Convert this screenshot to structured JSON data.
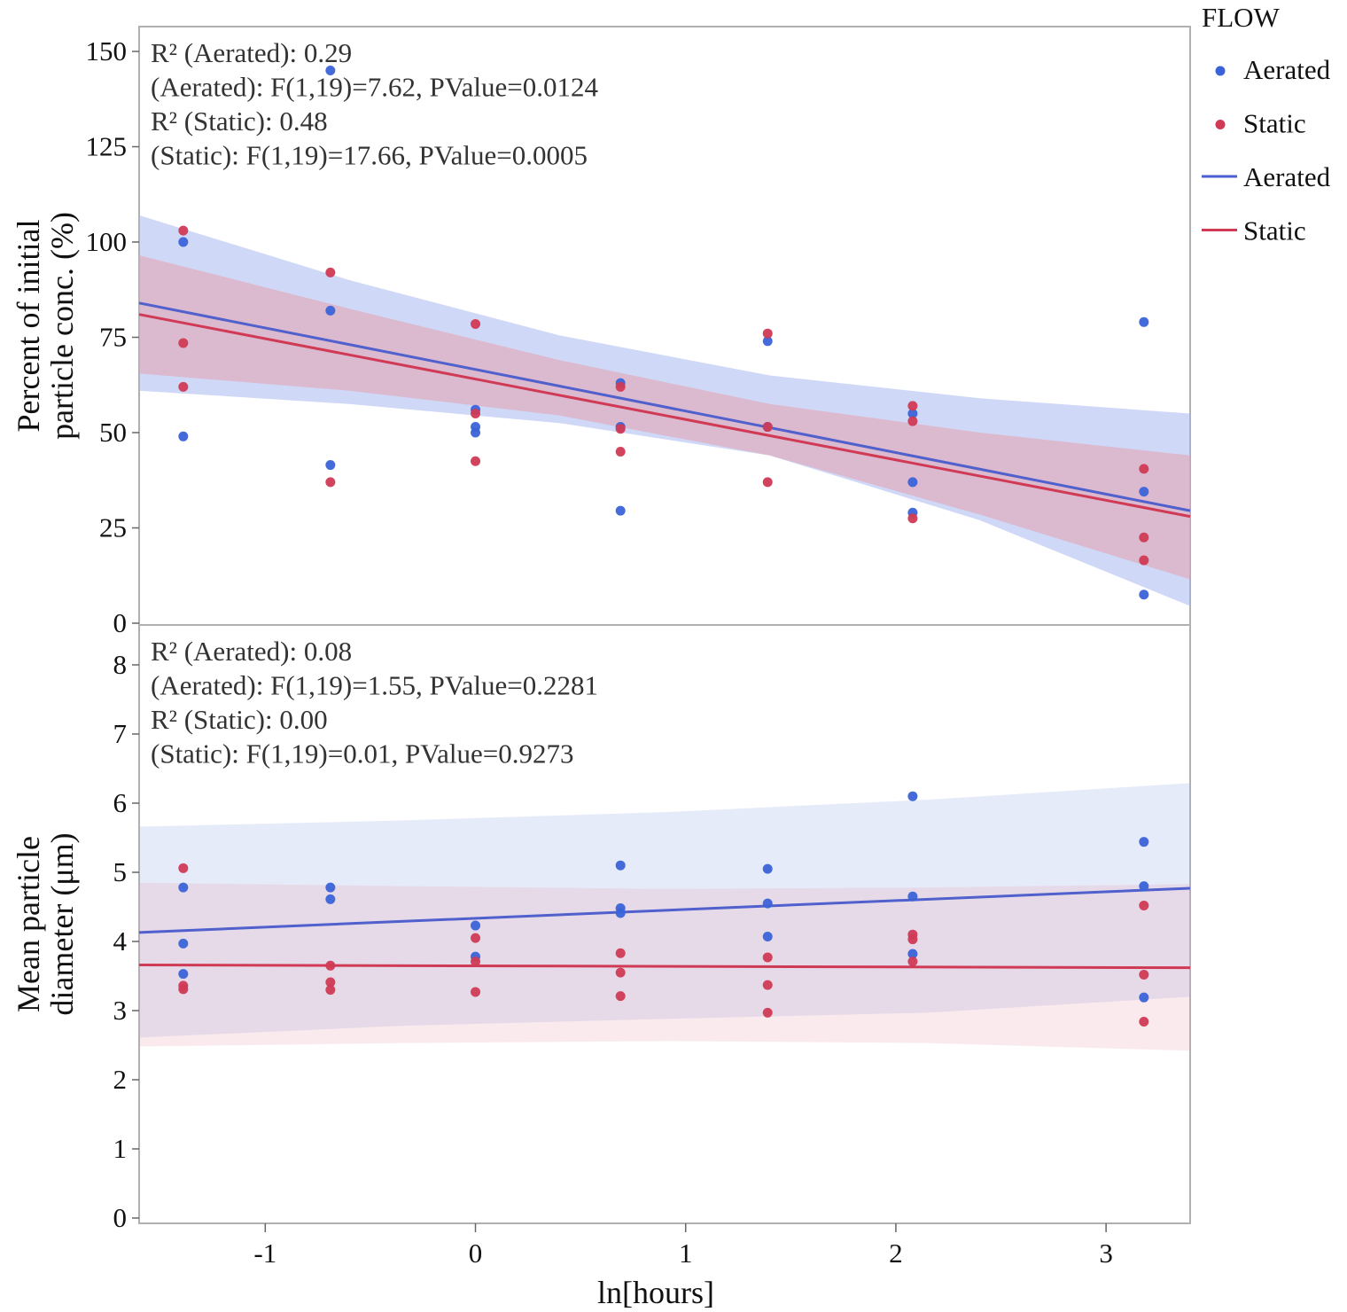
{
  "chart_data": {
    "type": "scatter",
    "xlabel": "ln[hours]",
    "xlim": [
      -1.6,
      3.4
    ],
    "xticks": [
      -1,
      0,
      1,
      2,
      3
    ],
    "legend": {
      "title": "FLOW",
      "placement": "right",
      "entries": [
        {
          "label": "Aerated",
          "kind": "point",
          "color": "#3b63d8"
        },
        {
          "label": "Static",
          "kind": "point",
          "color": "#d03a55"
        },
        {
          "label": "Aerated",
          "kind": "line",
          "color": "#4a5fd0"
        },
        {
          "label": "Static",
          "kind": "line",
          "color": "#d03a55"
        }
      ]
    },
    "colors": {
      "aerated_point": "#3b63d8",
      "static_point": "#d03a55",
      "aerated_line": "#5060cc",
      "static_line": "#d03a55",
      "aerated_band": "#a7b8ee",
      "static_band": "#e6a0ae"
    },
    "panels": [
      {
        "id": "concentration",
        "ylabel_lines": [
          "Percent of initial",
          "particle conc. (%)"
        ],
        "ylim": [
          0,
          156
        ],
        "yticks": [
          0,
          25,
          50,
          75,
          100,
          125,
          150
        ],
        "annotations": [
          "R² (Aerated): 0.29",
          "(Aerated): F(1,19)=7.62, PValue=0.0124",
          "R² (Static): 0.48",
          "(Static): F(1,19)=17.66, PValue=0.0005"
        ],
        "series": [
          {
            "name": "Aerated",
            "points": [
              [
                -1.39,
                100
              ],
              [
                -1.39,
                49
              ],
              [
                -0.69,
                82
              ],
              [
                -0.69,
                41.5
              ],
              [
                -0.69,
                145
              ],
              [
                0,
                56
              ],
              [
                0,
                51.5
              ],
              [
                0,
                50
              ],
              [
                0.69,
                63
              ],
              [
                0.69,
                51.5
              ],
              [
                0.69,
                29.5
              ],
              [
                1.39,
                74
              ],
              [
                1.39,
                51.5
              ],
              [
                2.08,
                55
              ],
              [
                2.08,
                37
              ],
              [
                2.08,
                29
              ],
              [
                3.18,
                79
              ],
              [
                3.18,
                34.5
              ],
              [
                3.18,
                7.5
              ]
            ],
            "fit": [
              [
                -1.6,
                84
              ],
              [
                3.4,
                29.5
              ]
            ],
            "band_upper": [
              [
                -1.6,
                107
              ],
              [
                -0.6,
                90
              ],
              [
                0.4,
                75.5
              ],
              [
                1.4,
                65
              ],
              [
                2.4,
                59
              ],
              [
                3.4,
                55
              ]
            ],
            "band_lower": [
              [
                -1.6,
                61
              ],
              [
                -0.6,
                57.5
              ],
              [
                0.4,
                52.5
              ],
              [
                1.4,
                44
              ],
              [
                2.4,
                27
              ],
              [
                3.4,
                4.5
              ]
            ]
          },
          {
            "name": "Static",
            "points": [
              [
                -1.39,
                103
              ],
              [
                -1.39,
                73.5
              ],
              [
                -1.39,
                62
              ],
              [
                -0.69,
                92
              ],
              [
                -0.69,
                37
              ],
              [
                0,
                78.5
              ],
              [
                0,
                55
              ],
              [
                0,
                42.5
              ],
              [
                0.69,
                62
              ],
              [
                0.69,
                51
              ],
              [
                0.69,
                45
              ],
              [
                1.39,
                76
              ],
              [
                1.39,
                51.5
              ],
              [
                1.39,
                37
              ],
              [
                2.08,
                57
              ],
              [
                2.08,
                53
              ],
              [
                2.08,
                27.5
              ],
              [
                3.18,
                40.5
              ],
              [
                3.18,
                22.5
              ],
              [
                3.18,
                16.5
              ]
            ],
            "fit": [
              [
                -1.6,
                81
              ],
              [
                3.4,
                28
              ]
            ],
            "band_upper": [
              [
                -1.6,
                96.5
              ],
              [
                -0.6,
                82.5
              ],
              [
                0.4,
                69
              ],
              [
                1.4,
                57.5
              ],
              [
                2.4,
                50
              ],
              [
                3.4,
                44
              ]
            ],
            "band_lower": [
              [
                -1.6,
                65.5
              ],
              [
                -0.6,
                61
              ],
              [
                0.4,
                54.5
              ],
              [
                1.4,
                44
              ],
              [
                2.4,
                28.5
              ],
              [
                3.4,
                11.5
              ]
            ]
          }
        ]
      },
      {
        "id": "diameter",
        "ylabel_lines": [
          "Mean particle",
          "diameter (μm)"
        ],
        "ylim": [
          0,
          8.4
        ],
        "yticks": [
          0,
          1,
          2,
          3,
          4,
          5,
          6,
          7,
          8
        ],
        "annotations": [
          "R² (Aerated): 0.08",
          "(Aerated): F(1,19)=1.55, PValue=0.2281",
          "R² (Static): 0.00",
          "(Static): F(1,19)=0.01, PValue=0.9273"
        ],
        "series": [
          {
            "name": "Aerated",
            "points": [
              [
                -1.39,
                4.78
              ],
              [
                -1.39,
                3.97
              ],
              [
                -1.39,
                3.53
              ],
              [
                -0.69,
                4.78
              ],
              [
                -0.69,
                4.61
              ],
              [
                0,
                4.23
              ],
              [
                0,
                3.78
              ],
              [
                0.69,
                5.1
              ],
              [
                0.69,
                4.48
              ],
              [
                0.69,
                4.41
              ],
              [
                1.39,
                5.05
              ],
              [
                1.39,
                4.55
              ],
              [
                1.39,
                4.07
              ],
              [
                2.08,
                6.1
              ],
              [
                2.08,
                4.65
              ],
              [
                2.08,
                3.82
              ],
              [
                3.18,
                5.44
              ],
              [
                3.18,
                4.8
              ],
              [
                3.18,
                3.19
              ]
            ],
            "fit": [
              [
                -1.6,
                4.13
              ],
              [
                3.4,
                4.77
              ]
            ],
            "band_upper": [
              [
                -1.6,
                5.66
              ],
              [
                -0.35,
                5.75
              ],
              [
                0.9,
                5.87
              ],
              [
                2.15,
                6.05
              ],
              [
                3.4,
                6.29
              ]
            ],
            "band_lower": [
              [
                -1.6,
                2.61
              ],
              [
                -0.35,
                2.78
              ],
              [
                0.9,
                2.88
              ],
              [
                2.15,
                2.97
              ],
              [
                3.4,
                3.2
              ]
            ]
          },
          {
            "name": "Static",
            "points": [
              [
                -1.39,
                5.06
              ],
              [
                -1.39,
                3.36
              ],
              [
                -1.39,
                3.31
              ],
              [
                -0.69,
                3.65
              ],
              [
                -0.69,
                3.41
              ],
              [
                -0.69,
                3.3
              ],
              [
                0,
                4.05
              ],
              [
                0,
                3.71
              ],
              [
                0,
                3.27
              ],
              [
                0.69,
                3.83
              ],
              [
                0.69,
                3.55
              ],
              [
                0.69,
                3.21
              ],
              [
                1.39,
                3.77
              ],
              [
                1.39,
                3.37
              ],
              [
                1.39,
                2.97
              ],
              [
                2.08,
                4.1
              ],
              [
                2.08,
                4.03
              ],
              [
                2.08,
                3.71
              ],
              [
                3.18,
                4.52
              ],
              [
                3.18,
                3.52
              ],
              [
                3.18,
                2.84
              ]
            ],
            "fit": [
              [
                -1.6,
                3.66
              ],
              [
                3.4,
                3.62
              ]
            ],
            "band_upper": [
              [
                -1.6,
                4.85
              ],
              [
                -0.35,
                4.8
              ],
              [
                0.9,
                4.76
              ],
              [
                2.15,
                4.78
              ],
              [
                3.4,
                4.83
              ]
            ],
            "band_lower": [
              [
                -1.6,
                2.48
              ],
              [
                -0.35,
                2.53
              ],
              [
                0.9,
                2.56
              ],
              [
                2.15,
                2.53
              ],
              [
                3.4,
                2.42
              ]
            ]
          }
        ]
      }
    ]
  }
}
